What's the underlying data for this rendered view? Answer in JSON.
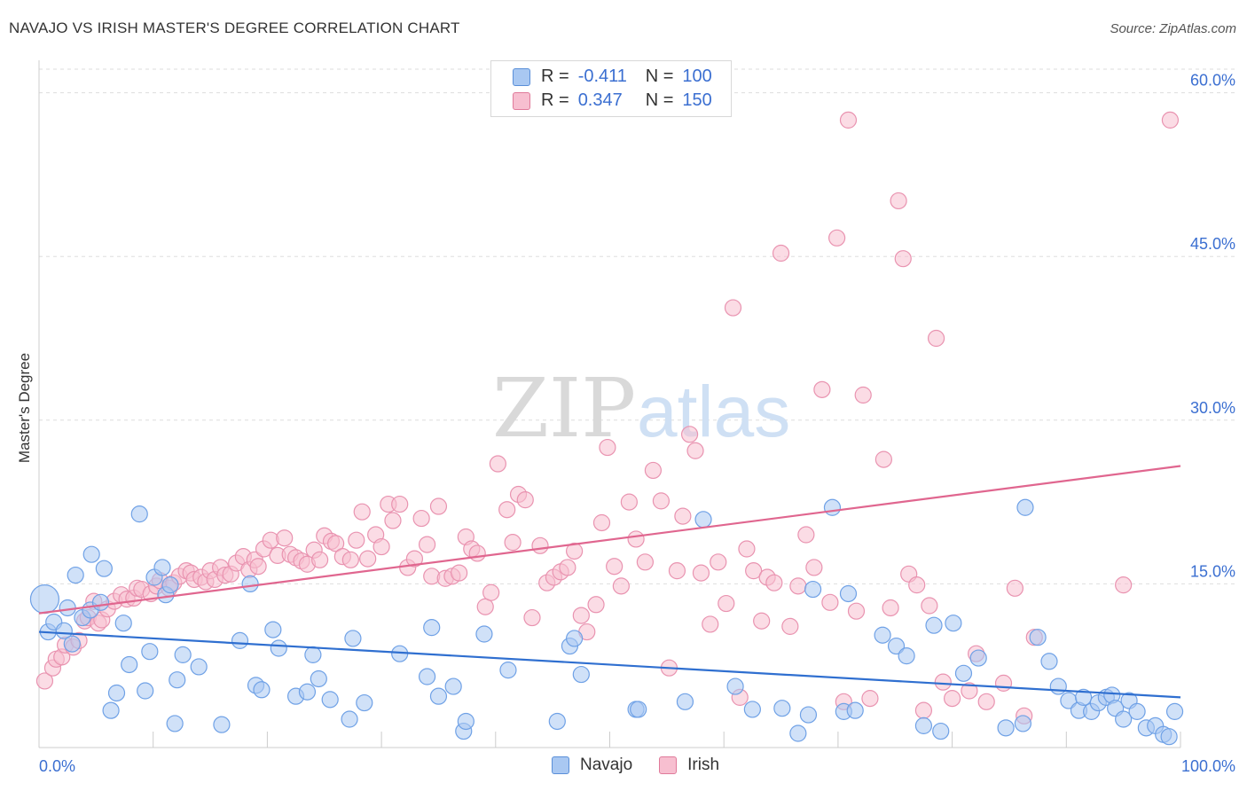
{
  "title": "NAVAJO VS IRISH MASTER'S DEGREE CORRELATION CHART",
  "source": "Source: ZipAtlas.com",
  "watermark": {
    "zip": "ZIP",
    "atlas": "atlas"
  },
  "legend": {
    "rows": [
      {
        "r_label": "R =",
        "r_value": "-0.411",
        "n_label": "N =",
        "n_value": "100",
        "color": "#a9c8f2",
        "border": "#5a8fd8"
      },
      {
        "r_label": "R =",
        "r_value": "0.347",
        "n_label": "N =",
        "n_value": "150",
        "color": "#f7bfd0",
        "border": "#e07a9a"
      }
    ]
  },
  "bottom_legend": [
    {
      "label": "Navajo",
      "color": "#a9c8f2",
      "border": "#5a8fd8"
    },
    {
      "label": "Irish",
      "color": "#f7bfd0",
      "border": "#e07a9a"
    }
  ],
  "chart_data": {
    "type": "scatter",
    "title": "NAVAJO VS IRISH MASTER'S DEGREE CORRELATION CHART",
    "xlabel": "",
    "ylabel": "Master's Degree",
    "xlim": [
      0,
      100
    ],
    "ylim": [
      0,
      62
    ],
    "x_tick_labels": [
      "0.0%",
      "100.0%"
    ],
    "y_ticks": [
      15,
      30,
      45,
      60
    ],
    "y_tick_labels": [
      "15.0%",
      "30.0%",
      "45.0%",
      "60.0%"
    ],
    "grid": true,
    "legend_position": "top-center",
    "series": [
      {
        "name": "Navajo",
        "color": "#6fa1e6",
        "fill": "#a9c8f2",
        "trend": {
          "x": [
            0,
            100
          ],
          "y": [
            10.6,
            4.6
          ],
          "color": "#2f6fd0"
        },
        "points": [
          [
            0.5,
            13.6
          ],
          [
            0.8,
            10.6
          ],
          [
            1.3,
            11.5
          ],
          [
            2.2,
            10.7
          ],
          [
            2.5,
            12.8
          ],
          [
            2.9,
            9.5
          ],
          [
            3.2,
            15.8
          ],
          [
            3.8,
            11.9
          ],
          [
            4.5,
            12.6
          ],
          [
            4.6,
            17.7
          ],
          [
            5.4,
            13.3
          ],
          [
            5.7,
            16.4
          ],
          [
            6.3,
            3.4
          ],
          [
            6.8,
            5.0
          ],
          [
            7.4,
            11.4
          ],
          [
            7.9,
            7.6
          ],
          [
            8.8,
            21.4
          ],
          [
            9.3,
            5.2
          ],
          [
            9.7,
            8.8
          ],
          [
            10.1,
            15.6
          ],
          [
            10.8,
            16.5
          ],
          [
            11.1,
            14.0
          ],
          [
            11.5,
            14.9
          ],
          [
            11.9,
            2.2
          ],
          [
            12.1,
            6.2
          ],
          [
            12.6,
            8.5
          ],
          [
            14.0,
            7.4
          ],
          [
            16.0,
            2.1
          ],
          [
            17.6,
            9.8
          ],
          [
            18.5,
            15.0
          ],
          [
            19.0,
            5.7
          ],
          [
            19.5,
            5.3
          ],
          [
            20.5,
            10.8
          ],
          [
            21.0,
            9.1
          ],
          [
            22.5,
            4.7
          ],
          [
            23.5,
            5.1
          ],
          [
            24.0,
            8.5
          ],
          [
            24.5,
            6.3
          ],
          [
            25.5,
            4.4
          ],
          [
            27.2,
            2.6
          ],
          [
            27.5,
            10.0
          ],
          [
            28.5,
            4.1
          ],
          [
            31.6,
            8.6
          ],
          [
            34.0,
            6.5
          ],
          [
            34.4,
            11.0
          ],
          [
            35.0,
            4.7
          ],
          [
            36.3,
            5.6
          ],
          [
            37.2,
            1.5
          ],
          [
            37.4,
            2.4
          ],
          [
            39.0,
            10.4
          ],
          [
            41.1,
            7.1
          ],
          [
            45.4,
            2.4
          ],
          [
            46.5,
            9.3
          ],
          [
            46.9,
            10.0
          ],
          [
            47.5,
            6.7
          ],
          [
            52.3,
            3.5
          ],
          [
            52.5,
            3.5
          ],
          [
            56.6,
            4.2
          ],
          [
            58.2,
            20.9
          ],
          [
            61.0,
            5.6
          ],
          [
            62.5,
            3.5
          ],
          [
            65.1,
            3.6
          ],
          [
            66.5,
            1.3
          ],
          [
            67.4,
            3.0
          ],
          [
            67.8,
            14.5
          ],
          [
            69.5,
            22.0
          ],
          [
            70.5,
            3.3
          ],
          [
            70.9,
            14.1
          ],
          [
            71.5,
            3.4
          ],
          [
            73.9,
            10.3
          ],
          [
            75.1,
            9.3
          ],
          [
            76.0,
            8.4
          ],
          [
            77.5,
            2.0
          ],
          [
            78.4,
            11.2
          ],
          [
            79.0,
            1.5
          ],
          [
            80.1,
            11.4
          ],
          [
            81.0,
            6.8
          ],
          [
            82.3,
            8.2
          ],
          [
            84.7,
            1.8
          ],
          [
            86.2,
            2.2
          ],
          [
            86.4,
            22.0
          ],
          [
            87.5,
            10.1
          ],
          [
            88.5,
            7.9
          ],
          [
            89.3,
            5.6
          ],
          [
            90.2,
            4.3
          ],
          [
            91.1,
            3.4
          ],
          [
            91.5,
            4.6
          ],
          [
            92.2,
            3.3
          ],
          [
            92.8,
            4.1
          ],
          [
            93.5,
            4.6
          ],
          [
            94.0,
            4.8
          ],
          [
            94.3,
            3.6
          ],
          [
            95.0,
            2.6
          ],
          [
            95.5,
            4.3
          ],
          [
            96.2,
            3.3
          ],
          [
            97.0,
            1.8
          ],
          [
            97.8,
            2.0
          ],
          [
            98.5,
            1.2
          ],
          [
            99.0,
            1.0
          ],
          [
            99.5,
            3.3
          ]
        ]
      },
      {
        "name": "Irish",
        "color": "#e993b0",
        "fill": "#f7bfd0",
        "trend": {
          "x": [
            0,
            100
          ],
          "y": [
            12.3,
            25.8
          ],
          "color": "#e0668f"
        },
        "points": [
          [
            0.5,
            6.1
          ],
          [
            1.2,
            7.3
          ],
          [
            1.5,
            8.1
          ],
          [
            2.0,
            8.3
          ],
          [
            2.3,
            9.4
          ],
          [
            3.0,
            9.2
          ],
          [
            3.5,
            9.8
          ],
          [
            4.0,
            11.6
          ],
          [
            4.3,
            11.9
          ],
          [
            4.8,
            13.4
          ],
          [
            5.2,
            11.4
          ],
          [
            5.5,
            11.7
          ],
          [
            6.0,
            12.7
          ],
          [
            6.6,
            13.4
          ],
          [
            7.2,
            14.0
          ],
          [
            7.7,
            13.6
          ],
          [
            8.3,
            13.7
          ],
          [
            8.6,
            14.6
          ],
          [
            9.0,
            14.5
          ],
          [
            9.8,
            14.1
          ],
          [
            10.3,
            14.8
          ],
          [
            10.6,
            15.3
          ],
          [
            11.4,
            14.6
          ],
          [
            11.8,
            15.1
          ],
          [
            12.3,
            15.7
          ],
          [
            12.9,
            16.2
          ],
          [
            13.3,
            16.0
          ],
          [
            13.6,
            15.4
          ],
          [
            14.2,
            15.6
          ],
          [
            14.6,
            15.2
          ],
          [
            15.0,
            16.2
          ],
          [
            15.4,
            15.4
          ],
          [
            15.9,
            16.5
          ],
          [
            16.3,
            15.8
          ],
          [
            16.8,
            15.9
          ],
          [
            17.3,
            16.9
          ],
          [
            17.9,
            17.5
          ],
          [
            18.4,
            16.3
          ],
          [
            18.9,
            17.2
          ],
          [
            19.2,
            16.6
          ],
          [
            19.7,
            18.2
          ],
          [
            20.3,
            19.0
          ],
          [
            20.9,
            17.6
          ],
          [
            21.5,
            19.2
          ],
          [
            22.0,
            17.7
          ],
          [
            22.5,
            17.4
          ],
          [
            23.0,
            17.1
          ],
          [
            23.5,
            16.8
          ],
          [
            24.1,
            18.1
          ],
          [
            24.6,
            17.2
          ],
          [
            25.0,
            19.4
          ],
          [
            25.6,
            18.9
          ],
          [
            26.0,
            18.7
          ],
          [
            26.6,
            17.5
          ],
          [
            27.3,
            17.2
          ],
          [
            27.8,
            19.0
          ],
          [
            28.3,
            21.6
          ],
          [
            28.8,
            17.3
          ],
          [
            29.5,
            19.5
          ],
          [
            30.0,
            18.4
          ],
          [
            30.6,
            22.3
          ],
          [
            31.0,
            20.8
          ],
          [
            31.6,
            22.3
          ],
          [
            32.3,
            16.5
          ],
          [
            32.9,
            17.3
          ],
          [
            33.5,
            21.0
          ],
          [
            34.0,
            18.6
          ],
          [
            34.4,
            15.7
          ],
          [
            35.0,
            22.1
          ],
          [
            35.6,
            15.5
          ],
          [
            36.2,
            15.7
          ],
          [
            36.8,
            16.0
          ],
          [
            37.4,
            19.3
          ],
          [
            37.9,
            18.2
          ],
          [
            38.4,
            17.8
          ],
          [
            39.1,
            12.9
          ],
          [
            39.6,
            14.2
          ],
          [
            40.2,
            26.0
          ],
          [
            41.0,
            21.8
          ],
          [
            41.5,
            18.8
          ],
          [
            42.0,
            23.2
          ],
          [
            42.6,
            22.7
          ],
          [
            43.2,
            11.9
          ],
          [
            43.9,
            18.5
          ],
          [
            44.5,
            15.1
          ],
          [
            45.1,
            15.6
          ],
          [
            45.7,
            16.1
          ],
          [
            46.3,
            16.5
          ],
          [
            46.9,
            18.0
          ],
          [
            47.5,
            12.1
          ],
          [
            48.0,
            10.6
          ],
          [
            48.8,
            13.1
          ],
          [
            49.3,
            20.6
          ],
          [
            49.8,
            27.5
          ],
          [
            50.4,
            16.6
          ],
          [
            51.0,
            14.8
          ],
          [
            51.7,
            22.5
          ],
          [
            52.3,
            19.1
          ],
          [
            53.1,
            17.0
          ],
          [
            53.8,
            25.4
          ],
          [
            54.5,
            22.6
          ],
          [
            55.2,
            7.3
          ],
          [
            55.9,
            16.2
          ],
          [
            56.4,
            21.2
          ],
          [
            57.0,
            28.7
          ],
          [
            57.5,
            27.2
          ],
          [
            58.0,
            16.0
          ],
          [
            58.8,
            11.3
          ],
          [
            59.5,
            17.0
          ],
          [
            60.2,
            13.2
          ],
          [
            60.8,
            40.3
          ],
          [
            61.4,
            4.6
          ],
          [
            62.0,
            18.2
          ],
          [
            62.6,
            16.2
          ],
          [
            63.3,
            11.6
          ],
          [
            63.8,
            15.6
          ],
          [
            64.4,
            15.1
          ],
          [
            65.0,
            45.3
          ],
          [
            65.8,
            11.1
          ],
          [
            66.5,
            14.8
          ],
          [
            67.2,
            19.5
          ],
          [
            67.9,
            16.5
          ],
          [
            68.6,
            32.8
          ],
          [
            69.3,
            13.3
          ],
          [
            69.9,
            46.7
          ],
          [
            70.5,
            4.2
          ],
          [
            70.9,
            57.5
          ],
          [
            71.6,
            12.5
          ],
          [
            72.2,
            32.3
          ],
          [
            72.8,
            4.5
          ],
          [
            74.0,
            26.4
          ],
          [
            74.6,
            12.8
          ],
          [
            75.3,
            50.1
          ],
          [
            75.7,
            44.8
          ],
          [
            76.2,
            15.9
          ],
          [
            76.9,
            14.9
          ],
          [
            77.5,
            3.4
          ],
          [
            78.0,
            13.0
          ],
          [
            78.6,
            37.5
          ],
          [
            79.2,
            6.0
          ],
          [
            80.0,
            4.5
          ],
          [
            81.5,
            5.2
          ],
          [
            82.1,
            8.6
          ],
          [
            83.0,
            4.2
          ],
          [
            84.5,
            5.9
          ],
          [
            85.5,
            14.6
          ],
          [
            86.3,
            2.9
          ],
          [
            87.2,
            10.1
          ],
          [
            95.0,
            14.9
          ],
          [
            99.1,
            57.5
          ]
        ]
      }
    ]
  }
}
